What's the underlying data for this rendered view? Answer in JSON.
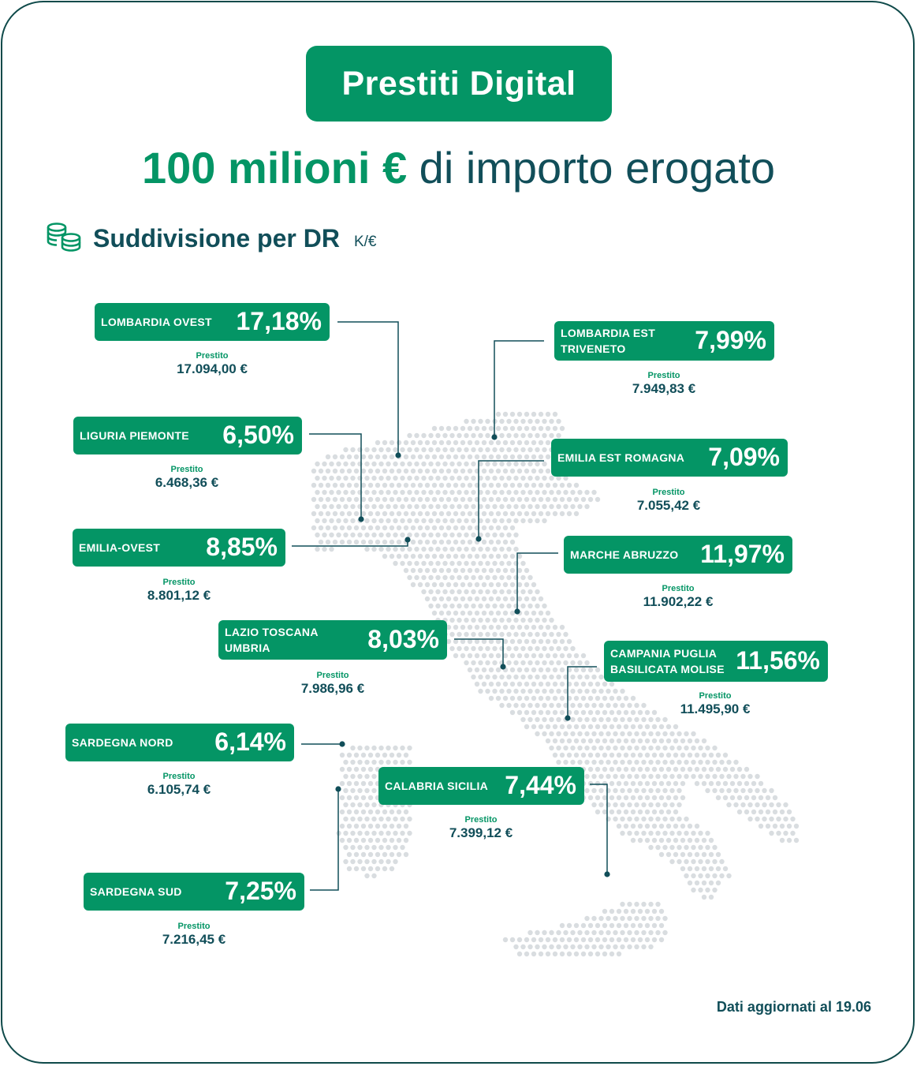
{
  "title": "Prestiti Digital",
  "headline": {
    "highlight": "100 milioni €",
    "rest": " di importo erogato"
  },
  "subtitle": "Suddivisione per DR",
  "unit": "K/€",
  "icon": "coins-stack-icon",
  "footnote": "Dati aggiornati al 19.06",
  "colors": {
    "accent": "#049565",
    "dark": "#114e59",
    "map_dots": "#d9dde0"
  },
  "regions": [
    {
      "name": "LOMBARDIA OVEST",
      "percent": "17,18%",
      "loan_label": "Prestito",
      "loan": "17.094,00 €"
    },
    {
      "name": "LOMBARDIA EST TRIVENETO",
      "percent": "7,99%",
      "loan_label": "Prestito",
      "loan": "7.949,83 €"
    },
    {
      "name": "LIGURIA PIEMONTE",
      "percent": "6,50%",
      "loan_label": "Prestito",
      "loan": "6.468,36 €"
    },
    {
      "name": "EMILIA EST ROMAGNA",
      "percent": "7,09%",
      "loan_label": "Prestito",
      "loan": "7.055,42 €"
    },
    {
      "name": "EMILIA-OVEST",
      "percent": "8,85%",
      "loan_label": "Prestito",
      "loan": "8.801,12 €"
    },
    {
      "name": "MARCHE ABRUZZO",
      "percent": "11,97%",
      "loan_label": "Prestito",
      "loan": "11.902,22 €"
    },
    {
      "name": "LAZIO TOSCANA UMBRIA",
      "percent": "8,03%",
      "loan_label": "Prestito",
      "loan": "7.986,96 €"
    },
    {
      "name": "CAMPANIA PUGLIA BASILICATA MOLISE",
      "percent": "11,56%",
      "loan_label": "Prestito",
      "loan": "11.495,90 €"
    },
    {
      "name": "SARDEGNA NORD",
      "percent": "6,14%",
      "loan_label": "Prestito",
      "loan": "6.105,74 €"
    },
    {
      "name": "CALABRIA SICILIA",
      "percent": "7,44%",
      "loan_label": "Prestito",
      "loan": "7.399,12 €"
    },
    {
      "name": "SARDEGNA SUD",
      "percent": "7,25%",
      "loan_label": "Prestito",
      "loan": "7.216,45 €"
    }
  ]
}
